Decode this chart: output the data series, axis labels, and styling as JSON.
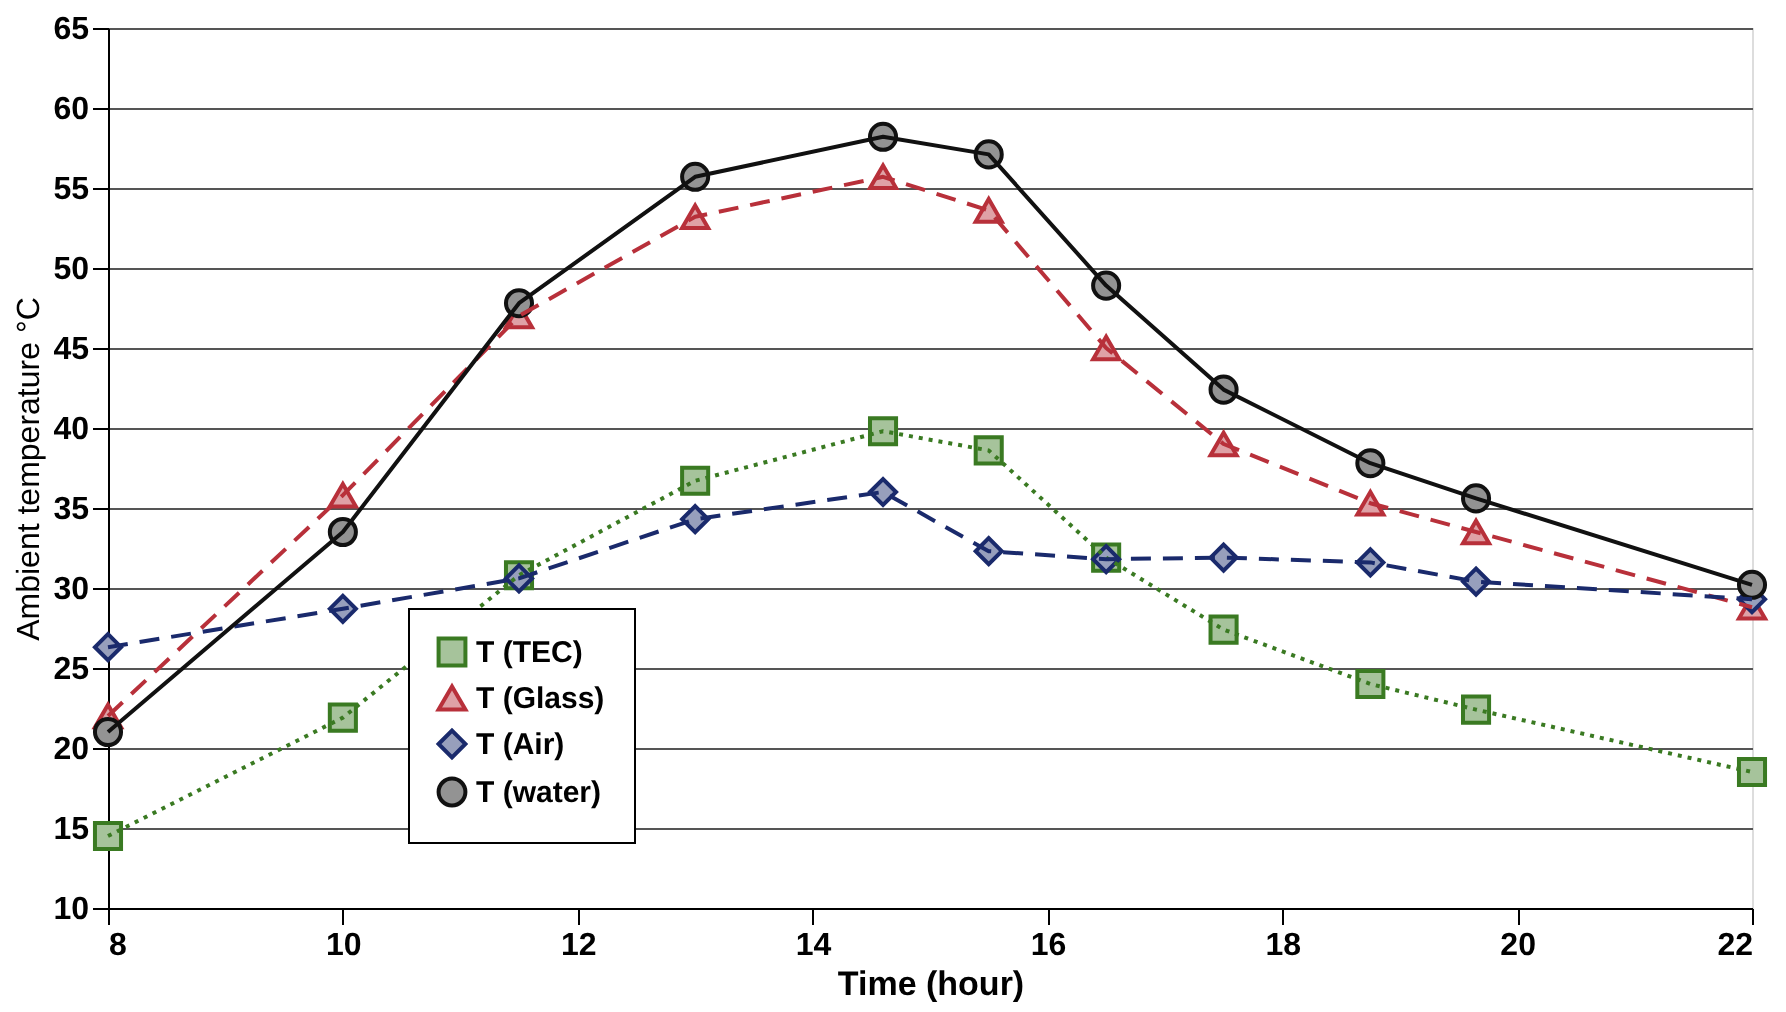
{
  "chart_data": {
    "type": "line",
    "xlabel": "Time (hour)",
    "ylabel": "Ambient temperature °C",
    "x": [
      8,
      10,
      11.5,
      13,
      14.6,
      15.5,
      16.5,
      17.5,
      18.75,
      19.65,
      22
    ],
    "series": [
      {
        "name": "T (TEC)",
        "color": "#3a7a22",
        "marker": "square",
        "line_style": "dotted",
        "values": [
          14.5,
          21.9,
          30.8,
          36.7,
          39.8,
          38.6,
          31.9,
          27.4,
          24.0,
          22.4,
          18.5
        ]
      },
      {
        "name": "T (Glass)",
        "color": "#b8303a",
        "marker": "triangle",
        "line_style": "dashed",
        "values": [
          22.0,
          35.8,
          47.0,
          53.2,
          55.7,
          53.6,
          45.0,
          39.0,
          35.3,
          33.5,
          28.8
        ]
      },
      {
        "name": "T (Air)",
        "color": "#1a2a6c",
        "marker": "diamond",
        "line_style": "dashed",
        "values": [
          26.3,
          28.7,
          30.6,
          34.3,
          36.0,
          32.3,
          31.8,
          31.9,
          31.6,
          30.4,
          29.3
        ]
      },
      {
        "name": "T (water)",
        "color": "#111111",
        "marker": "circle",
        "line_style": "solid",
        "values": [
          21.0,
          33.5,
          47.8,
          55.7,
          58.2,
          57.1,
          48.9,
          42.4,
          37.8,
          35.6,
          30.2
        ]
      }
    ],
    "xlim": [
      8,
      22
    ],
    "xticks": [
      8,
      10,
      12,
      14,
      16,
      18,
      20,
      22
    ],
    "ylim": [
      10,
      65
    ],
    "yticks": [
      10,
      15,
      20,
      25,
      30,
      35,
      40,
      45,
      50,
      55,
      60,
      65
    ],
    "grid": "y",
    "legend": "bottom"
  }
}
